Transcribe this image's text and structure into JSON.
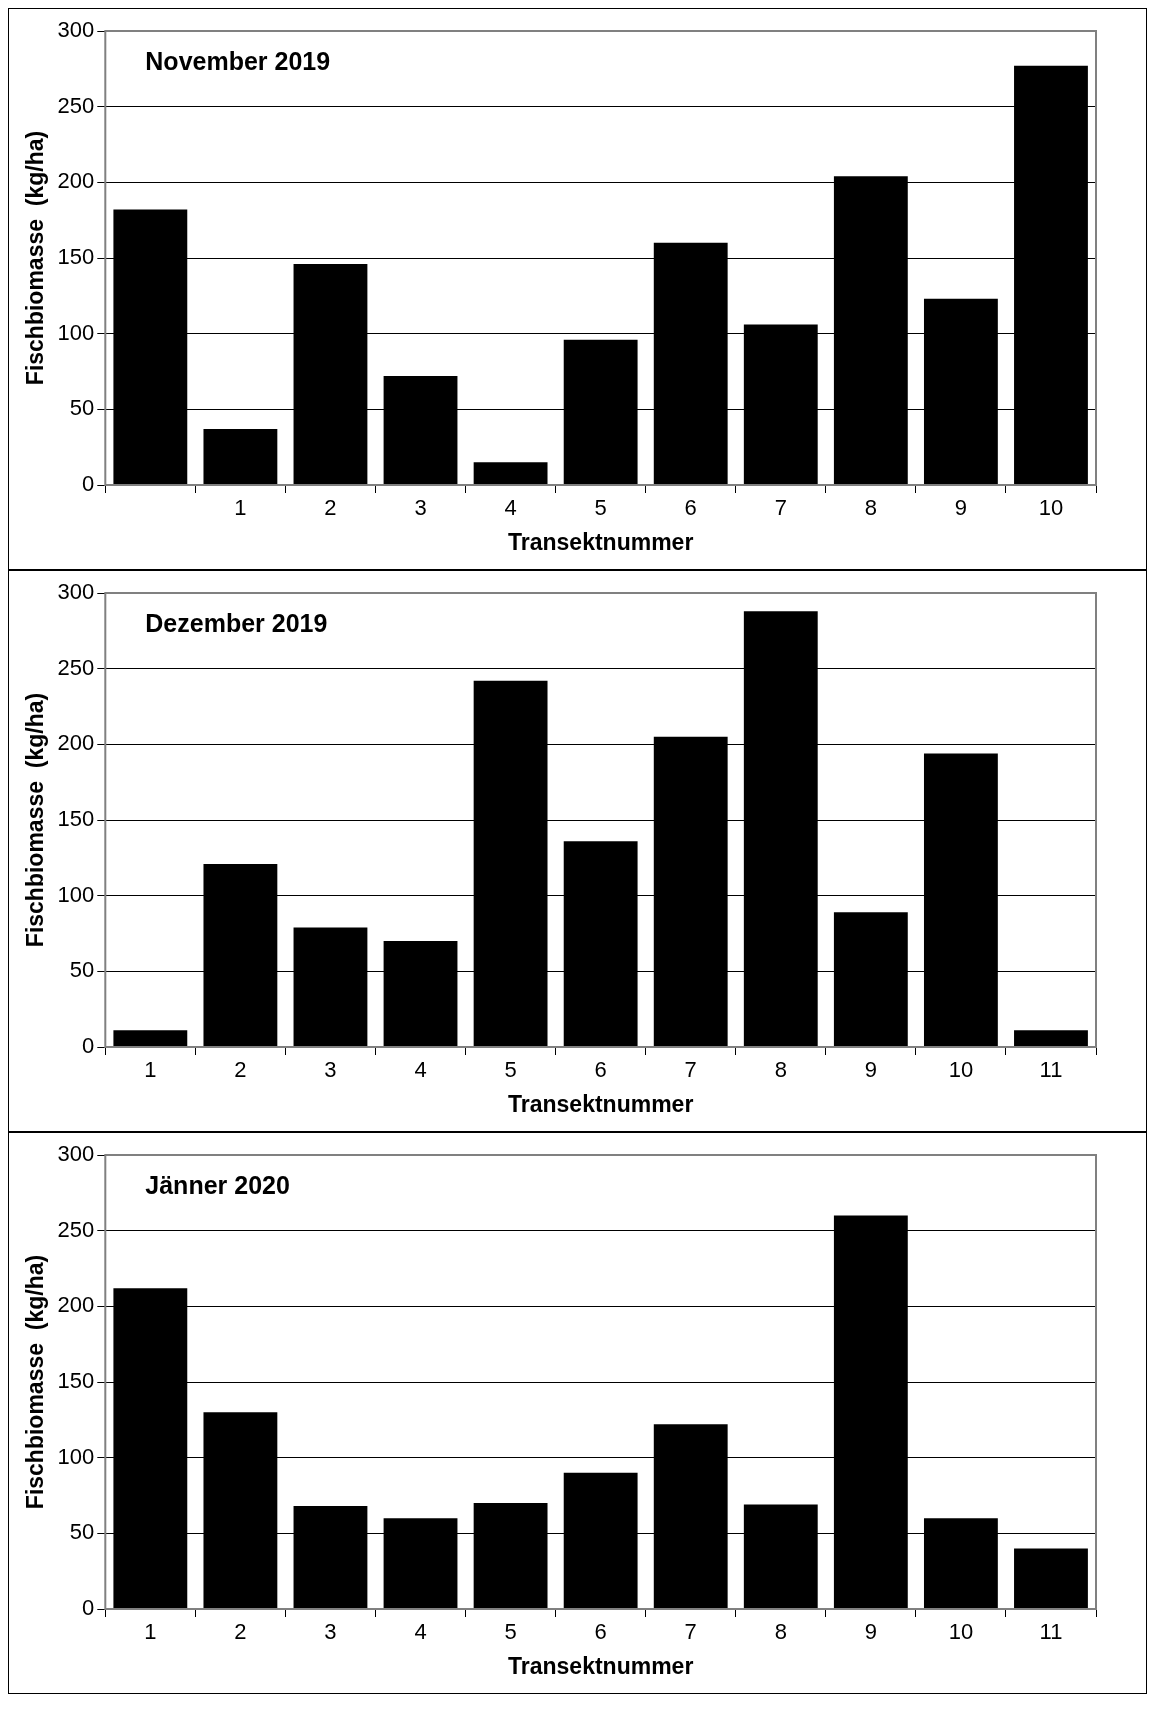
{
  "chart_data": [
    {
      "type": "bar",
      "title": "November 2019",
      "xlabel": "Transektnummer",
      "ylabel": "Fischbiomasse  (kg/ha)",
      "categories": [
        null,
        "1",
        "2",
        "3",
        "4",
        "5",
        "6",
        "7",
        "8",
        "9",
        "10"
      ],
      "values": [
        182,
        37,
        146,
        72,
        15,
        96,
        160,
        106,
        204,
        123,
        277
      ],
      "color": "#000000",
      "ylim": [
        0,
        300
      ],
      "yticks": [
        0,
        50,
        100,
        150,
        200,
        250,
        300
      ],
      "grid": "y"
    },
    {
      "type": "bar",
      "title": "Dezember 2019",
      "xlabel": "Transektnummer",
      "ylabel": "Fischbiomasse  (kg/ha)",
      "categories": [
        "1",
        "2",
        "3",
        "4",
        "5",
        "6",
        "7",
        "8",
        "9",
        "10",
        "11"
      ],
      "values": [
        11,
        121,
        79,
        70,
        242,
        136,
        205,
        288,
        89,
        194,
        11
      ],
      "color": "#000000",
      "ylim": [
        0,
        300
      ],
      "yticks": [
        0,
        50,
        100,
        150,
        200,
        250,
        300
      ],
      "grid": "y"
    },
    {
      "type": "bar",
      "title": "Jänner 2020",
      "xlabel": "Transektnummer",
      "ylabel": "Fischbiomasse  (kg/ha)",
      "categories": [
        "1",
        "2",
        "3",
        "4",
        "5",
        "6",
        "7",
        "8",
        "9",
        "10",
        "11"
      ],
      "values": [
        212,
        130,
        68,
        60,
        70,
        90,
        122,
        69,
        260,
        60,
        40
      ],
      "color": "#000000",
      "ylim": [
        0,
        300
      ],
      "yticks": [
        0,
        50,
        100,
        150,
        200,
        250,
        300
      ],
      "grid": "y"
    }
  ]
}
